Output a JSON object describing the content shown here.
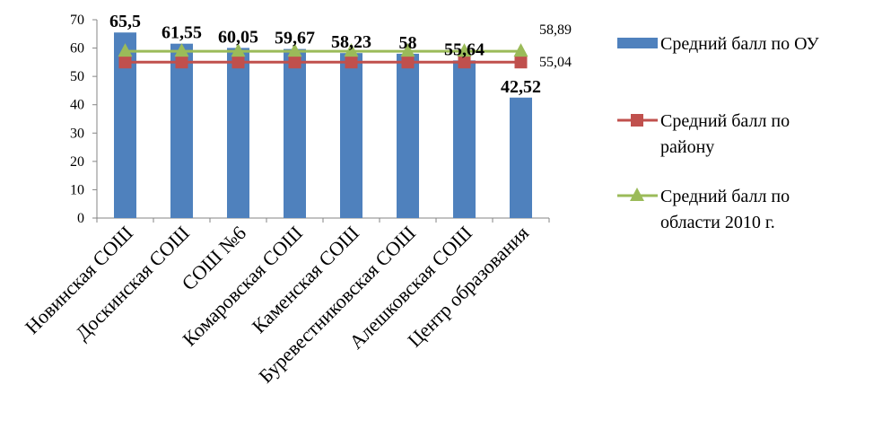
{
  "chart_data": {
    "type": "bar",
    "categories": [
      "Новинская СОШ",
      "Доскинская СОШ",
      "СОШ №6",
      "Комаровская СОШ",
      "Каменская СОШ",
      "Буревестниковская СОШ",
      "Алешковская СОШ",
      "Центр образования"
    ],
    "ylim": [
      0,
      70
    ],
    "yticks": [
      0,
      10,
      20,
      30,
      40,
      50,
      60,
      70
    ],
    "grid": false,
    "legend_position": "right",
    "series": [
      {
        "name": "Средний балл по ОУ",
        "type": "bar",
        "color": "#4f81bd",
        "values": [
          65.5,
          61.55,
          60.05,
          59.67,
          58.23,
          58,
          55.64,
          42.52
        ],
        "data_labels": [
          "65,5",
          "61,55",
          "60,05",
          "59,67",
          "58,23",
          "58",
          "55,64",
          "42,52"
        ]
      },
      {
        "name": "Средний балл по району",
        "type": "line",
        "marker": "square",
        "color": "#c0504d",
        "values": [
          55.04,
          55.04,
          55.04,
          55.04,
          55.04,
          55.04,
          55.04,
          55.04
        ],
        "end_label": "55,04"
      },
      {
        "name": "Средний балл по области 2010 г.",
        "type": "line",
        "marker": "triangle",
        "color": "#9bbb59",
        "values": [
          58.89,
          58.89,
          58.89,
          58.89,
          58.89,
          58.89,
          58.89,
          58.89
        ],
        "end_label": "58,89"
      }
    ],
    "legend": [
      {
        "lines": [
          "Средний балл по ОУ"
        ],
        "symbol": "bar",
        "color": "#4f81bd"
      },
      {
        "lines": [
          "Средний балл по",
          "району"
        ],
        "symbol": "line-square",
        "color": "#c0504d"
      },
      {
        "lines": [
          "Средний балл по",
          "области 2010 г."
        ],
        "symbol": "line-triangle",
        "color": "#9bbb59"
      }
    ]
  }
}
